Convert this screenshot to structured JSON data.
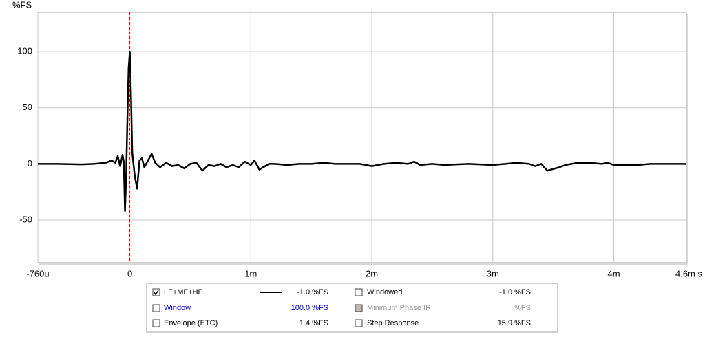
{
  "chart_data": {
    "type": "line",
    "y_label": "%FS",
    "xlim": [
      -0.00076,
      0.0046
    ],
    "ylim": [
      -88,
      135
    ],
    "xticks": [
      {
        "value": -0.00076,
        "label": "-760u"
      },
      0,
      {
        "value": 0.001,
        "label": "1m"
      },
      {
        "value": 0.002,
        "label": "2m"
      },
      {
        "value": 0.003,
        "label": "3m"
      },
      {
        "value": 0.004,
        "label": "4m"
      },
      {
        "value": 0.0046,
        "label": "4.6m s"
      }
    ],
    "yticks": [
      -50,
      0,
      50,
      100
    ],
    "grid": true,
    "marker_x": 0,
    "marker_color": "#e00000",
    "series": [
      {
        "name": "LF+MF+HF",
        "color": "#000000",
        "reading": "-1.0 %FS",
        "checked": true,
        "x": [
          -0.00076,
          -0.0006,
          -0.0004,
          -0.0003,
          -0.0002,
          -0.00015,
          -0.00012,
          -0.0001,
          -8e-05,
          -6e-05,
          -5e-05,
          -4e-05,
          -3e-05,
          -2e-05,
          -1e-05,
          0,
          1e-05,
          2e-05,
          4e-05,
          6e-05,
          8e-05,
          0.0001,
          0.00012,
          0.00015,
          0.00018,
          0.00021,
          0.00025,
          0.0003,
          0.00035,
          0.0004,
          0.00045,
          0.0005,
          0.00055,
          0.0006,
          0.00065,
          0.0007,
          0.00075,
          0.0008,
          0.00085,
          0.0009,
          0.00095,
          0.001,
          0.00103,
          0.00107,
          0.00115,
          0.0012,
          0.0013,
          0.0014,
          0.0015,
          0.0016,
          0.0017,
          0.0018,
          0.0019,
          0.002,
          0.0021,
          0.0022,
          0.0023,
          0.00235,
          0.0024,
          0.0025,
          0.0026,
          0.0027,
          0.0028,
          0.003,
          0.0031,
          0.0032,
          0.0033,
          0.00335,
          0.0034,
          0.00345,
          0.00355,
          0.0036,
          0.0037,
          0.0038,
          0.0039,
          0.00395,
          0.004,
          0.0042,
          0.0043,
          0.0045,
          0.0046
        ],
        "values": [
          0,
          0,
          -0.5,
          0,
          1,
          3,
          1,
          7,
          -2,
          8,
          2,
          -42,
          -10,
          40,
          85,
          100,
          60,
          10,
          -10,
          -22,
          3,
          5,
          -3,
          3,
          9,
          1,
          -3,
          1,
          -2,
          -1,
          -4,
          0,
          1,
          -6,
          -1,
          -2,
          0,
          -3,
          -1,
          -3,
          2,
          -1,
          3,
          -5,
          0,
          0,
          -1,
          0,
          0,
          1,
          0,
          0,
          0,
          -2,
          0,
          1,
          0,
          2,
          -1,
          0,
          -1,
          -0.5,
          0,
          -1,
          0,
          1,
          0,
          -2,
          0,
          -6,
          -3,
          -1,
          1,
          1,
          0,
          1,
          -1,
          -1,
          0,
          0,
          0
        ]
      }
    ],
    "other_traces": [
      {
        "name": "Window",
        "reading": "100.0 %FS",
        "checked": false,
        "color": "#0000cc"
      },
      {
        "name": "Envelope (ETC)",
        "reading": "1.4 %FS",
        "checked": false,
        "color": "#000000"
      },
      {
        "name": "Windowed",
        "reading": "-1.0 %FS",
        "checked": false,
        "color": "#000000"
      },
      {
        "name": "Minimum Phase IR",
        "reading": "%FS",
        "checked": false,
        "color": "#999999"
      },
      {
        "name": "Step Response",
        "reading": "15.9 %FS",
        "checked": false,
        "color": "#000000"
      }
    ]
  }
}
